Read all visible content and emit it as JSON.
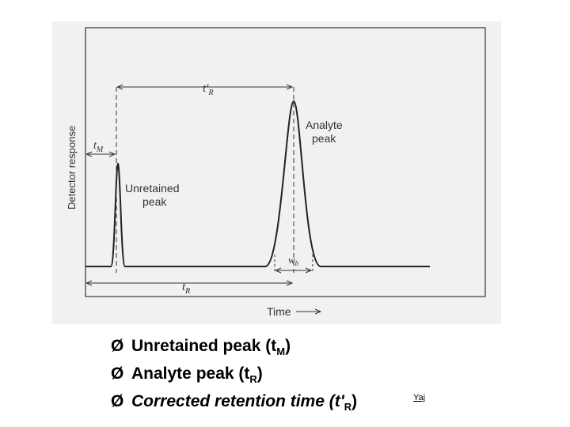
{
  "diagram": {
    "y_axis_label": "Detector response",
    "x_axis_label": "Time",
    "t_m_label": "t",
    "t_m_sub": "M",
    "t_r_label": "t",
    "t_r_sub": "R",
    "t_r_prime_label": "t'",
    "t_r_prime_sub": "R",
    "w_b_label": "w",
    "w_b_sub": "b",
    "analyte_label_line1": "Analyte",
    "analyte_label_line2": "peak",
    "unretained_label_line1": "Unretained",
    "unretained_label_line2": "peak"
  },
  "bullets": [
    {
      "arrow": "Ø",
      "text": "Unretained peak (t",
      "sub": "M",
      "close": ")"
    },
    {
      "arrow": "Ø",
      "text": "Analyte peak (t",
      "sub": "R",
      "close": ")"
    },
    {
      "arrow": "Ø",
      "text": "Corrected retention time (t'",
      "sub": "R",
      "close": ")"
    }
  ],
  "author": "Yaj"
}
